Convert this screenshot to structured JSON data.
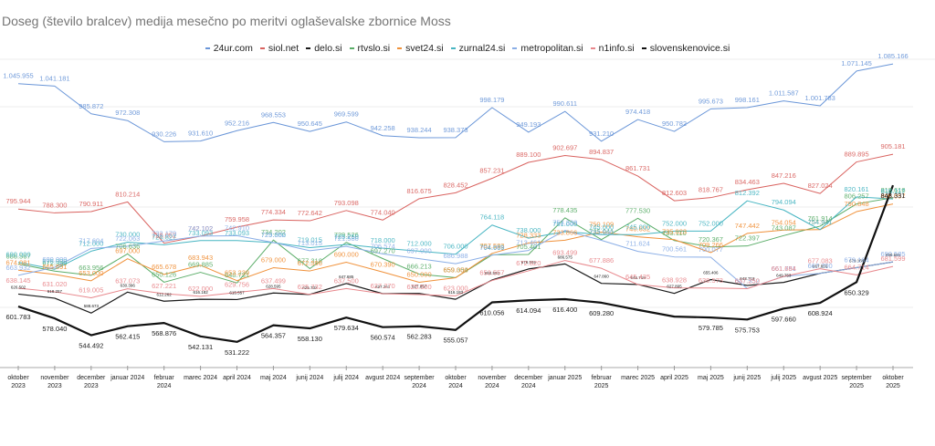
{
  "chart_data": {
    "type": "line",
    "title": "Doseg (število bralcev) medija mesečno po meritvi oglaševalske zbornice Moss",
    "xlabel": "",
    "ylabel": "",
    "legend_position": "top-center",
    "grid": true,
    "ylim": [
      480000,
      1100000
    ],
    "categories": [
      "oktober 2023",
      "november 2023",
      "december 2023",
      "januar 2024",
      "februar 2024",
      "marec 2024",
      "april 2024",
      "maj 2024",
      "junij 2024",
      "julij 2024",
      "avgust 2024",
      "september 2024",
      "oktober 2024",
      "november 2024",
      "december 2024",
      "januar 2025",
      "februar 2025",
      "marec 2025",
      "april 2025",
      "maj 2025",
      "junij 2025",
      "julij 2025",
      "avgust 2025",
      "september 2025",
      "oktober 2025"
    ],
    "tick_labels": [
      [
        "oktober",
        "2023"
      ],
      [
        "november",
        "2023"
      ],
      [
        "december",
        "2023"
      ],
      [
        "januar 2024"
      ],
      [
        "februar",
        "2024"
      ],
      [
        "marec 2024"
      ],
      [
        "april 2024"
      ],
      [
        "maj 2024"
      ],
      [
        "junij 2024"
      ],
      [
        "julij 2024"
      ],
      [
        "avgust 2024"
      ],
      [
        "september",
        "2024"
      ],
      [
        "oktober",
        "2024"
      ],
      [
        "november",
        "2024"
      ],
      [
        "december",
        "2024"
      ],
      [
        "januar 2025"
      ],
      [
        "februar",
        "2025"
      ],
      [
        "marec 2025"
      ],
      [
        "april 2025"
      ],
      [
        "maj 2025"
      ],
      [
        "junij 2025"
      ],
      [
        "julij 2025"
      ],
      [
        "avgust 2025"
      ],
      [
        "september",
        "2025"
      ],
      [
        "oktober",
        "2025"
      ]
    ],
    "series": [
      {
        "name": "24ur.com",
        "color": "#6a96d8",
        "width": 1,
        "values": [
          1045955,
          1041181,
          985872,
          972308,
          930226,
          931610,
          952216,
          968553,
          950645,
          969599,
          942258,
          938244,
          938373,
          998179,
          949193,
          990611,
          931210,
          974418,
          950782,
          995673,
          998161,
          1011587,
          1001783,
          1071145,
          1085166
        ]
      },
      {
        "name": "siol.net",
        "color": "#d9625f",
        "width": 1,
        "values": [
          795944,
          788300,
          790911,
          810214,
          728052,
          742102,
          759958,
          774334,
          772642,
          793098,
          774040,
          816675,
          828452,
          857231,
          889100,
          902697,
          894837,
          861731,
          812603,
          818767,
          834463,
          847216,
          827024,
          889895,
          905181
        ]
      },
      {
        "name": "delo.si",
        "color": "#1a1a1a",
        "width": 1.2,
        "small_labels": true,
        "values": [
          626502,
          618257,
          588673,
          630396,
          612262,
          616182,
          615557,
          628595,
          625732,
          647685,
          627251,
          627857,
          616183,
          654592,
          676555,
          686575,
          647860,
          645719,
          627895,
          655406,
          643718,
          649753,
          667856,
          679164,
          690585
        ]
      },
      {
        "name": "rtvslo.si",
        "color": "#5aad68",
        "width": 1,
        "values": [
          686567,
          672350,
          663956,
          706636,
          650126,
          669885,
          648731,
          734202,
          677318,
          729526,
          697270,
          666213,
          659354,
          704669,
          705401,
          778435,
          735041,
          777530,
          733110,
          720367,
          722397,
          743087,
          761914,
          806257,
          818616
        ]
      },
      {
        "name": "svet24.si",
        "color": "#f0913a",
        "width": 1,
        "values": [
          674081,
          665691,
          653000,
          697000,
          665678,
          683943,
          653239,
          679000,
          672596,
          690000,
          670390,
          650000,
          659000,
          707583,
          728333,
          733866,
          750109,
          740632,
          735023,
          709266,
          747442,
          754054,
          754941,
          790848,
          806057
        ]
      },
      {
        "name": "zurnal24.si",
        "color": "#47b5c2",
        "width": 1,
        "values": [
          690000,
          676000,
          712000,
          730000,
          724827,
          733093,
          733093,
          729000,
          719015,
          725250,
          718000,
          712000,
          706000,
          764118,
          738000,
          751000,
          745000,
          745000,
          752000,
          752000,
          812392,
          794094,
          754941,
          820161,
          816117
        ]
      },
      {
        "name": "metropolitan.si",
        "color": "#8aaee6",
        "width": 1,
        "values": [
          663932,
          680000,
          717604,
          722063,
          732179,
          742102,
          742910,
          729352,
          713015,
          721580,
          706574,
          697000,
          686988,
          704069,
          713461,
          753338,
          733590,
          711624,
          700561,
          700077,
          637552,
          661751,
          667700,
          679164,
          690585
        ]
      },
      {
        "name": "n1info.si",
        "color": "#e8878c",
        "width": 1,
        "values": [
          638145,
          631020,
          619005,
          637073,
          627221,
          622000,
          629756,
          637499,
          625732,
          637500,
          627270,
          625500,
          623000,
          653557,
          672820,
          693499,
          677886,
          645435,
          638928,
          638573,
          637250,
          661684,
          677083,
          664714,
          681599
        ]
      },
      {
        "name": "slovenskenovice.si",
        "color": "#111111",
        "width": 2.2,
        "values": [
          601783,
          578040,
          544492,
          562415,
          568876,
          542131,
          531222,
          564357,
          558130,
          579634,
          560574,
          562283,
          555057,
          610056,
          614094,
          616400,
          609280,
          595000,
          581600,
          579785,
          575753,
          597660,
          608924,
          650329,
          843331
        ]
      }
    ],
    "label_texts": {
      "24ur.com": [
        "1.045.955",
        "1.041.181",
        "985.872",
        "972.308",
        "930.226",
        "931.610",
        "952.216",
        "968.553",
        "950.645",
        "969.599",
        "942.258",
        "938.244",
        "938.373",
        "998.179",
        "949.193",
        "990.611",
        "931.210",
        "974.418",
        "950.782",
        "995.673",
        "998.161",
        "1.011.587",
        "1.001.783",
        "1.071.145",
        "1.085.166"
      ],
      "siol.net": [
        "795.944",
        "788.300",
        "790.911",
        "810.214",
        "728.052",
        "742.102",
        "759.958",
        "774.334",
        "772.642",
        "793.098",
        "774.040",
        "816.675",
        "828.452",
        "857.231",
        "889.100",
        "902.697",
        "894.837",
        "861.731",
        "812.603",
        "818.767",
        "834.463",
        "847.216",
        "827.024",
        "889.895",
        "905.181"
      ],
      "slovenskenovice.si": [
        "601.783",
        "578.040",
        "544.492",
        "562.415",
        "568.876",
        "542.131",
        "531.222",
        "564.357",
        "558.130",
        "579.634",
        "560.574",
        "562.283",
        "555.057",
        "610.056",
        "614.094",
        "616.400",
        "609.280",
        "",
        "",
        "579.785",
        "575.753",
        "597.660",
        "608.924",
        "650.329",
        "843.331"
      ]
    }
  }
}
